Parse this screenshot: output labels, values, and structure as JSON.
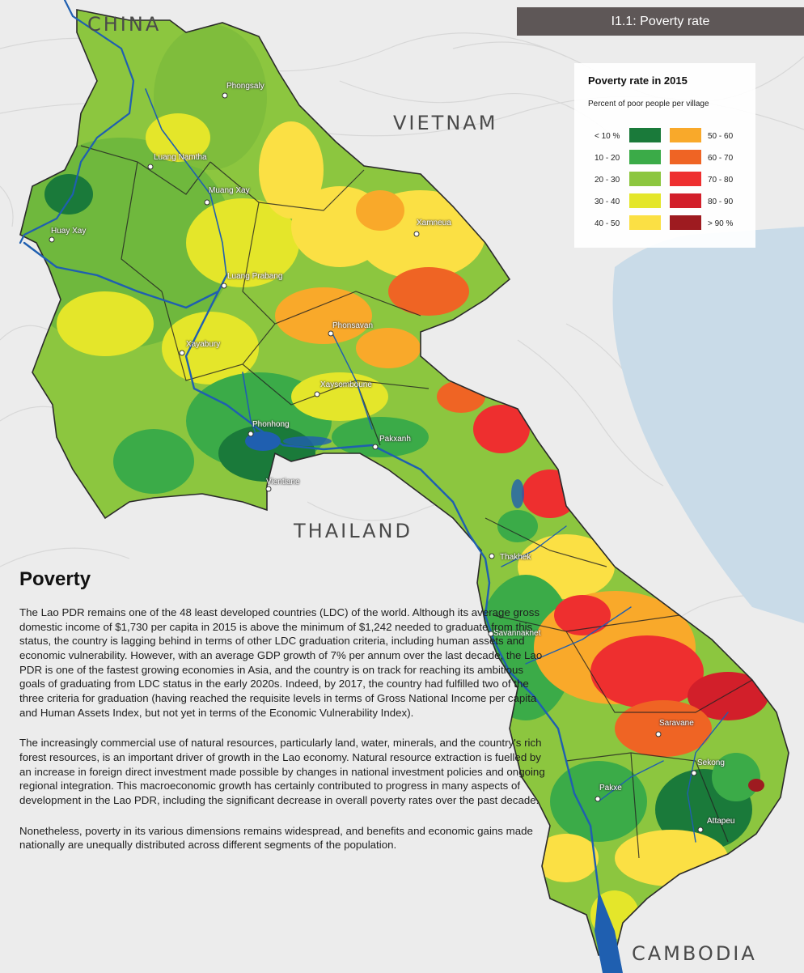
{
  "header": {
    "title": "I1.1: Poverty rate"
  },
  "countries": [
    {
      "id": "china",
      "label": "CHINA"
    },
    {
      "id": "vietnam",
      "label": "VIETNAM"
    },
    {
      "id": "thailand",
      "label": "THAILAND"
    },
    {
      "id": "cambodia",
      "label": "CAMBODIA"
    }
  ],
  "cities": [
    {
      "id": "phongsaly",
      "label": "Phongsaly"
    },
    {
      "id": "luang-namtha",
      "label": "Luang Namtha"
    },
    {
      "id": "muang-xay",
      "label": "Muang Xay"
    },
    {
      "id": "huay-xay",
      "label": "Huay Xay"
    },
    {
      "id": "xamneua",
      "label": "Xamneua"
    },
    {
      "id": "luang-prabang",
      "label": "Luang Prabang"
    },
    {
      "id": "phonsavan",
      "label": "Phonsavan"
    },
    {
      "id": "xayabury",
      "label": "Xayabury"
    },
    {
      "id": "xaysomboune",
      "label": "Xaysomboune"
    },
    {
      "id": "phonhong",
      "label": "Phonhong"
    },
    {
      "id": "pakxanh",
      "label": "Pakxanh"
    },
    {
      "id": "vientiane",
      "label": "Vientiane"
    },
    {
      "id": "thakhek",
      "label": "Thakhek"
    },
    {
      "id": "savannakhet",
      "label": "Savannakhet"
    },
    {
      "id": "saravane",
      "label": "Saravane"
    },
    {
      "id": "sekong",
      "label": "Sekong"
    },
    {
      "id": "pakxe",
      "label": "Pakxe"
    },
    {
      "id": "attapeu",
      "label": "Attapeu"
    }
  ],
  "legend": {
    "title": "Poverty rate in 2015",
    "subtitle": "Percent of poor people per village",
    "classes": [
      {
        "label": "< 10 %",
        "color": "#1a7a3a"
      },
      {
        "label": "10 - 20",
        "color": "#3bab48"
      },
      {
        "label": "20 - 30",
        "color": "#8cc63f"
      },
      {
        "label": "30 - 40",
        "color": "#e4e62a"
      },
      {
        "label": "40 - 50",
        "color": "#fbe044"
      },
      {
        "label": "50 - 60",
        "color": "#f9a92a"
      },
      {
        "label": "60 - 70",
        "color": "#ef6424"
      },
      {
        "label": "70 - 80",
        "color": "#ee2f2f"
      },
      {
        "label": "80 - 90",
        "color": "#d21f2a"
      },
      {
        "label": "> 90 %",
        "color": "#9e1b20"
      }
    ]
  },
  "colors": {
    "water": "#c9dbe8",
    "river": "#1f5fb0",
    "terrain": "#ececec"
  },
  "article": {
    "heading": "Poverty",
    "paragraphs": [
      "The Lao PDR remains one of the 48 least developed countries (LDC) of the world. Although its average gross domestic income of $1,730 per capita in 2015 is above the minimum of $1,242 needed to graduate from this status, the country is lagging behind in terms of other LDC graduation criteria, including human assets and economic vulnerability. However, with an average GDP growth of 7% per annum over the last decade, the Lao PDR is one of the fastest growing economies in Asia, and the country is on track for reaching its ambitious goals of graduating from LDC status in the early 2020s. Indeed, by 2017, the country had fulfilled two of the three criteria for graduation (having reached the requisite levels in terms of Gross National Income per capita and Human Assets Index, but not yet in terms of the Economic Vulnerability Index).",
      "The increasingly commercial use of natural resources, particularly land, water, minerals, and the country's rich forest resources, is an important driver of growth in the Lao economy. Natural resource extraction is fuelled by an increase in foreign direct investment made possible by changes in national investment policies and ongoing regional integration. This macroeconomic growth has certainly contributed to progress in many aspects of development in the Lao PDR, including the significant decrease in overall poverty rates over the past decade.",
      "Nonetheless, poverty in its various dimensions remains widespread, and benefits and economic gains made nationally are unequally distributed across different segments of the population."
    ]
  }
}
